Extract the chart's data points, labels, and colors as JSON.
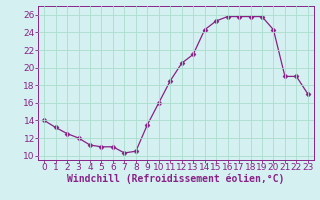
{
  "x": [
    0,
    1,
    2,
    3,
    4,
    5,
    6,
    7,
    8,
    9,
    10,
    11,
    12,
    13,
    14,
    15,
    16,
    17,
    18,
    19,
    20,
    21,
    22,
    23
  ],
  "y": [
    14.0,
    13.2,
    12.5,
    12.0,
    11.2,
    11.0,
    11.0,
    10.3,
    10.5,
    13.5,
    16.0,
    18.5,
    20.5,
    21.5,
    24.3,
    25.3,
    25.8,
    25.8,
    25.8,
    25.8,
    24.3,
    19.0,
    19.0,
    17.0
  ],
  "line_color": "#882288",
  "marker": "D",
  "marker_size": 2.5,
  "bg_color": "#d4f0f0",
  "grid_color": "#aaddcc",
  "xlabel": "Windchill (Refroidissement éolien,°C)",
  "xlim": [
    -0.5,
    23.5
  ],
  "ylim": [
    9.5,
    27
  ],
  "yticks": [
    10,
    12,
    14,
    16,
    18,
    20,
    22,
    24,
    26
  ],
  "xticks": [
    0,
    1,
    2,
    3,
    4,
    5,
    6,
    7,
    8,
    9,
    10,
    11,
    12,
    13,
    14,
    15,
    16,
    17,
    18,
    19,
    20,
    21,
    22,
    23
  ],
  "axis_color": "#882288",
  "xlabel_fontsize": 7,
  "tick_fontsize": 6.5
}
